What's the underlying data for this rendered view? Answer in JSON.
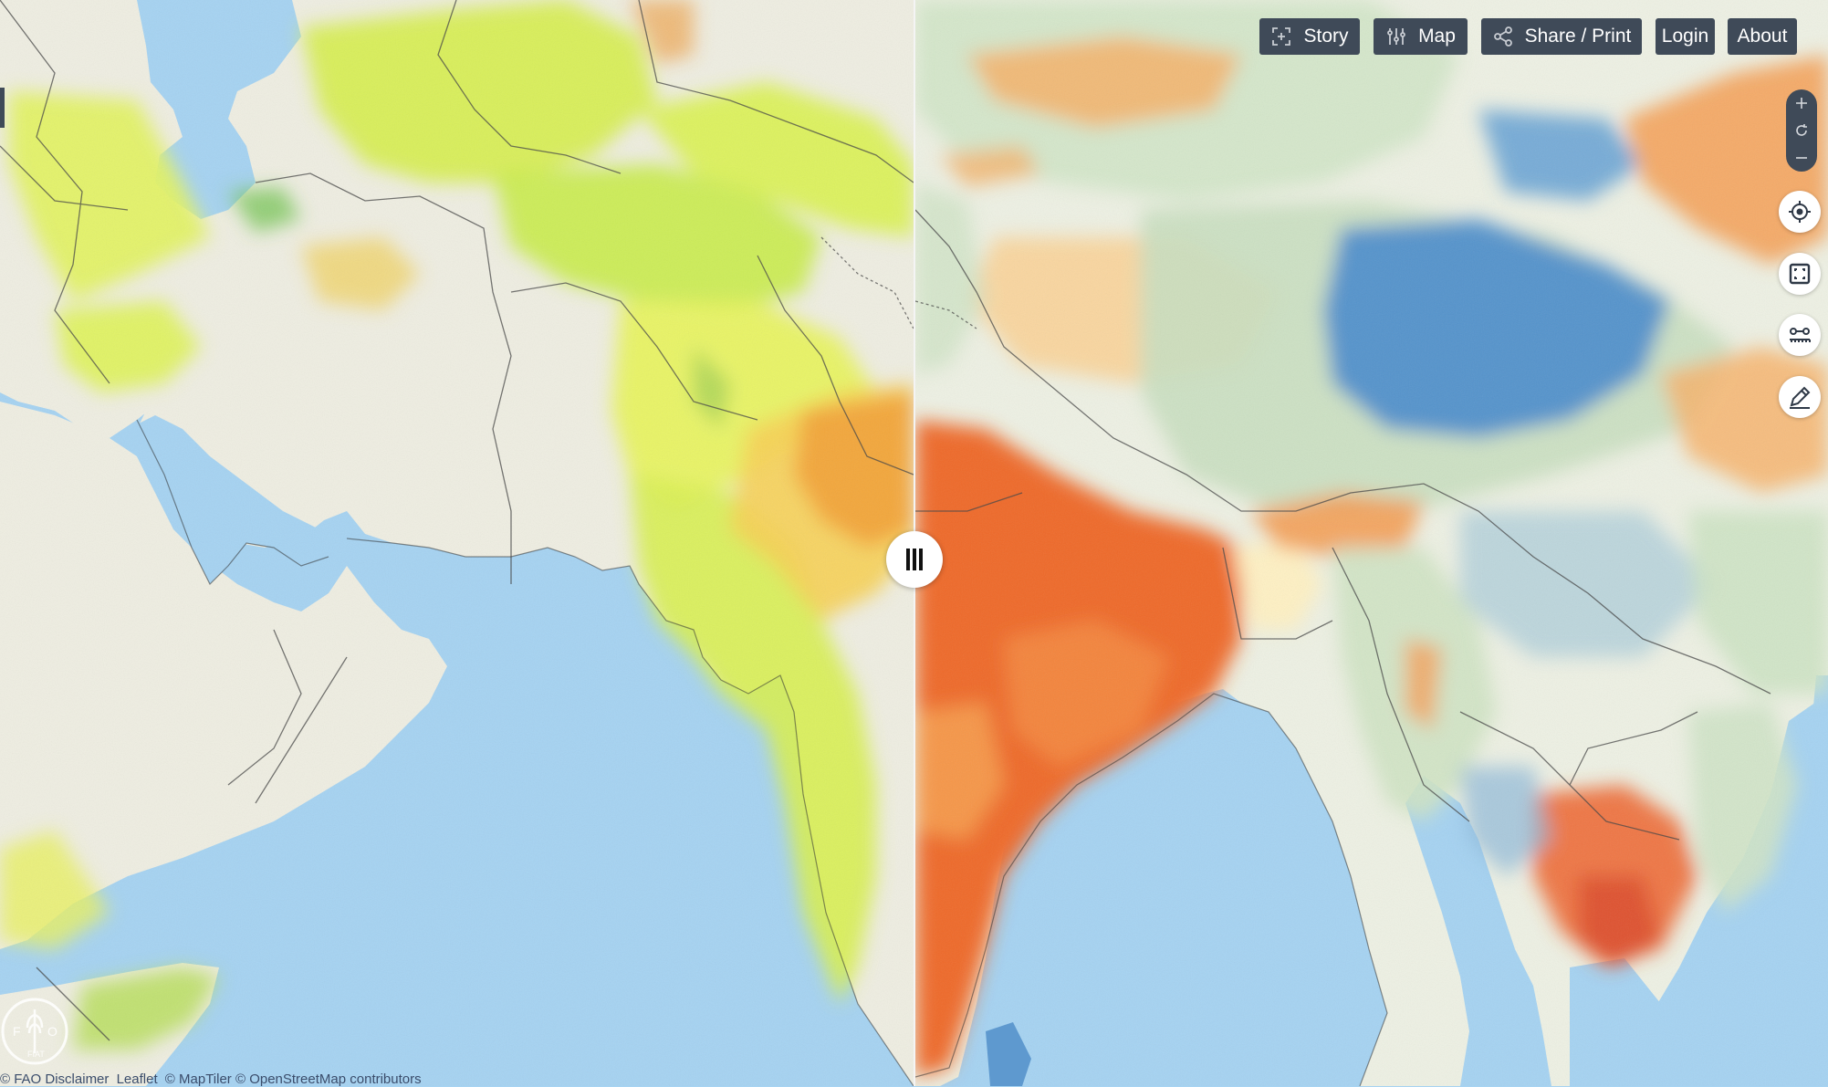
{
  "toolbar": {
    "story_label": "Story",
    "map_label": "Map",
    "share_label": "Share / Print",
    "login_label": "Login",
    "about_label": "About"
  },
  "attribution": {
    "disclaimer": "© FAO Disclaimer",
    "leaflet": "Leaflet",
    "tiles": "© MapTiler © OpenStreetMap contributors"
  },
  "icons": {
    "story": "story-expand-icon",
    "map": "map-sliders-icon",
    "share": "share-icon",
    "zoom_in": "plus-icon",
    "reset": "rotate-icon",
    "zoom_out": "minus-icon",
    "locate": "crosshair-icon",
    "fullscreen": "fullscreen-icon",
    "measure": "measure-icon",
    "draw": "pencil-icon",
    "swipe": "swipe-handle-icon",
    "logo": "fao-logo-icon"
  },
  "colors": {
    "toolbar_bg": "#3f4a58",
    "ocean": "#a6d3f2",
    "land_neutral": "#efeee2",
    "left_low": "#dcf23a",
    "left_high": "#f29b33",
    "right_high": "#ef6a2a",
    "right_low": "#3f86c9"
  }
}
